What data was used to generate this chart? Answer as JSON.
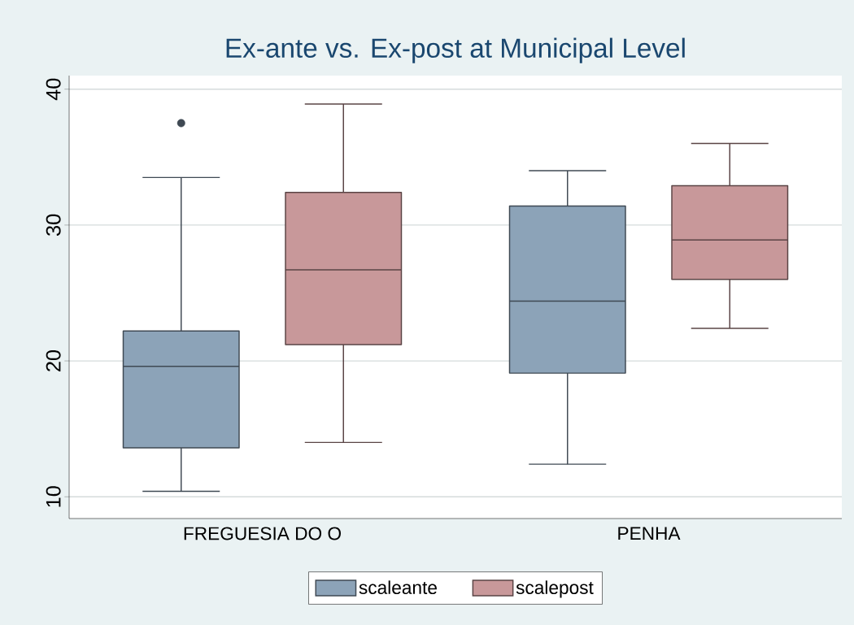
{
  "chart_data": {
    "type": "box",
    "title": "Ex-ante vs. Ex-post at Municipal Level",
    "categories": [
      "FREGUESIA DO O",
      "PENHA"
    ],
    "series": [
      {
        "name": "scaleante",
        "color": "#8ca3b8",
        "boxes": [
          {
            "low": 10.4,
            "q1": 13.6,
            "median": 19.6,
            "q3": 22.2,
            "high": 33.5,
            "outliers": [
              37.5
            ]
          },
          {
            "low": 12.4,
            "q1": 19.1,
            "median": 24.4,
            "q3": 31.4,
            "high": 34
          }
        ]
      },
      {
        "name": "scalepost",
        "color": "#c8989a",
        "boxes": [
          {
            "low": 14,
            "q1": 21.2,
            "median": 26.7,
            "q3": 32.4,
            "high": 38.9
          },
          {
            "low": 22.4,
            "q1": 26,
            "median": 28.9,
            "q3": 32.9,
            "high": 36
          }
        ]
      }
    ],
    "ylim": [
      8.4,
      41
    ],
    "yticks": [
      10,
      20,
      30,
      40
    ],
    "grid": "y",
    "legend": "bottom"
  }
}
